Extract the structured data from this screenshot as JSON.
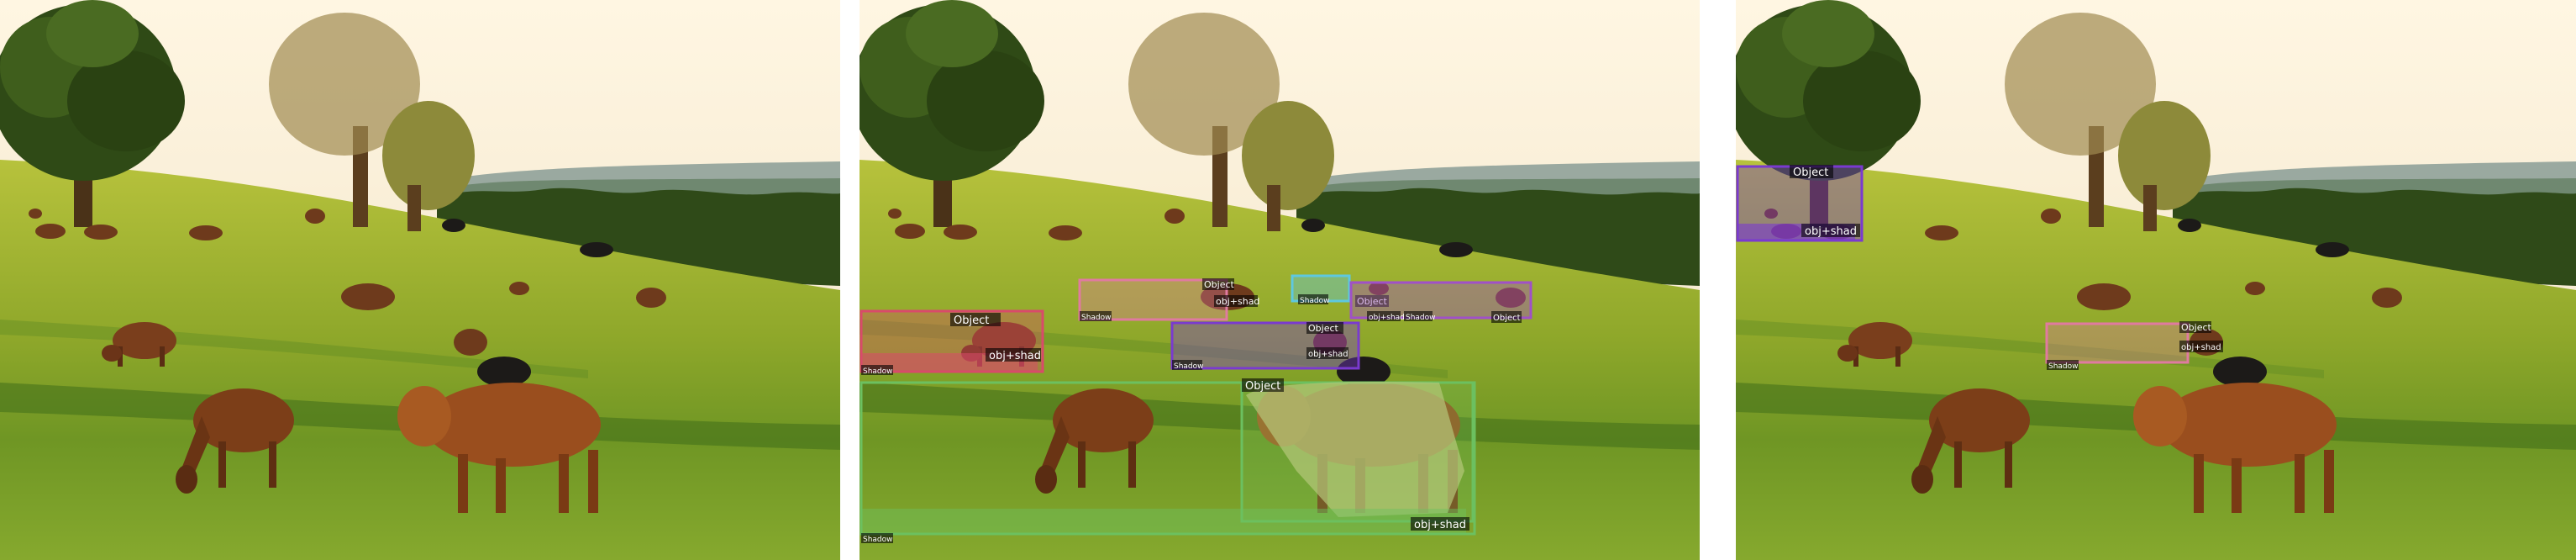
{
  "panels": [
    {
      "id": "original",
      "annotations": []
    },
    {
      "id": "all-predictions",
      "annotations": [
        {
          "color": "#d94a6a",
          "labels": [
            "Object",
            "obj+shad",
            "Shadow"
          ]
        },
        {
          "color": "#e07aa0",
          "labels": [
            "Object",
            "obj+shad",
            "Shadow"
          ]
        },
        {
          "color": "#5ec8e0",
          "labels": [
            "Object",
            "obj+shad",
            "Shadow"
          ]
        },
        {
          "color": "#a050c8",
          "labels": [
            "Object",
            "obj+shad",
            "Shadow"
          ]
        },
        {
          "color": "#7a3ad0",
          "labels": [
            "Object",
            "obj+shad",
            "Shadow"
          ]
        },
        {
          "color": "#6cc060",
          "labels": [
            "Object",
            "obj+shad",
            "Shadow"
          ]
        }
      ]
    },
    {
      "id": "selected-predictions",
      "annotations": [
        {
          "color": "#7a3ad0",
          "labels": [
            "Object",
            "obj+shad"
          ]
        },
        {
          "color": "#e07aa0",
          "labels": [
            "Object",
            "obj+shad",
            "Shadow"
          ]
        }
      ]
    }
  ],
  "label_texts": {
    "object": "Object",
    "objshad": "obj+shad",
    "shadow": "Shadow"
  },
  "colors": {
    "sky_top": "#fff3d8",
    "sky_bottom": "#f2e4c8",
    "grass_light": "#b2c43a",
    "grass_mid": "#8aa82a",
    "grass_dark": "#4f7a1e",
    "cow_brown": "#8a4a22",
    "cow_black": "#1c1a18"
  }
}
